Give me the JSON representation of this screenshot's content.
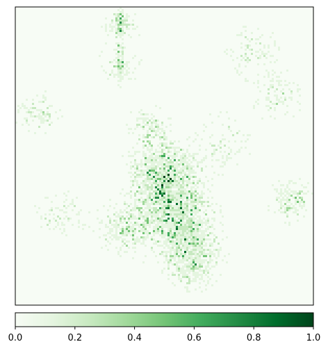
{
  "chart_data": {
    "type": "heatmap",
    "title": "",
    "xlabel": "",
    "ylabel": "",
    "colormap": "Greens",
    "colorbar": {
      "orientation": "horizontal",
      "placement": "bottom",
      "range": [
        0.0,
        1.0
      ],
      "ticks": [
        0.0,
        0.2,
        0.4,
        0.6,
        0.8,
        1.0
      ],
      "tick_labels": [
        "0.0",
        "0.2",
        "0.4",
        "0.6",
        "0.8",
        "1.0"
      ]
    },
    "axes_ticks_visible": false,
    "grid": false,
    "description_of_values": {
      "background_level": 0.03,
      "high_intensity_regions": [
        {
          "region": "center",
          "approx_max": 1.0
        },
        {
          "region": "lower-center",
          "approx_max": 0.95
        },
        {
          "region": "top-center column",
          "approx_max": 0.6
        },
        {
          "region": "right edge",
          "approx_max": 0.8
        },
        {
          "region": "left edge",
          "approx_max": 0.6
        }
      ]
    },
    "colors": {
      "low": "#f7fcf5",
      "mid_low": "#c7e9c0",
      "mid": "#74c476",
      "mid_high": "#238b45",
      "high": "#00441b"
    }
  }
}
